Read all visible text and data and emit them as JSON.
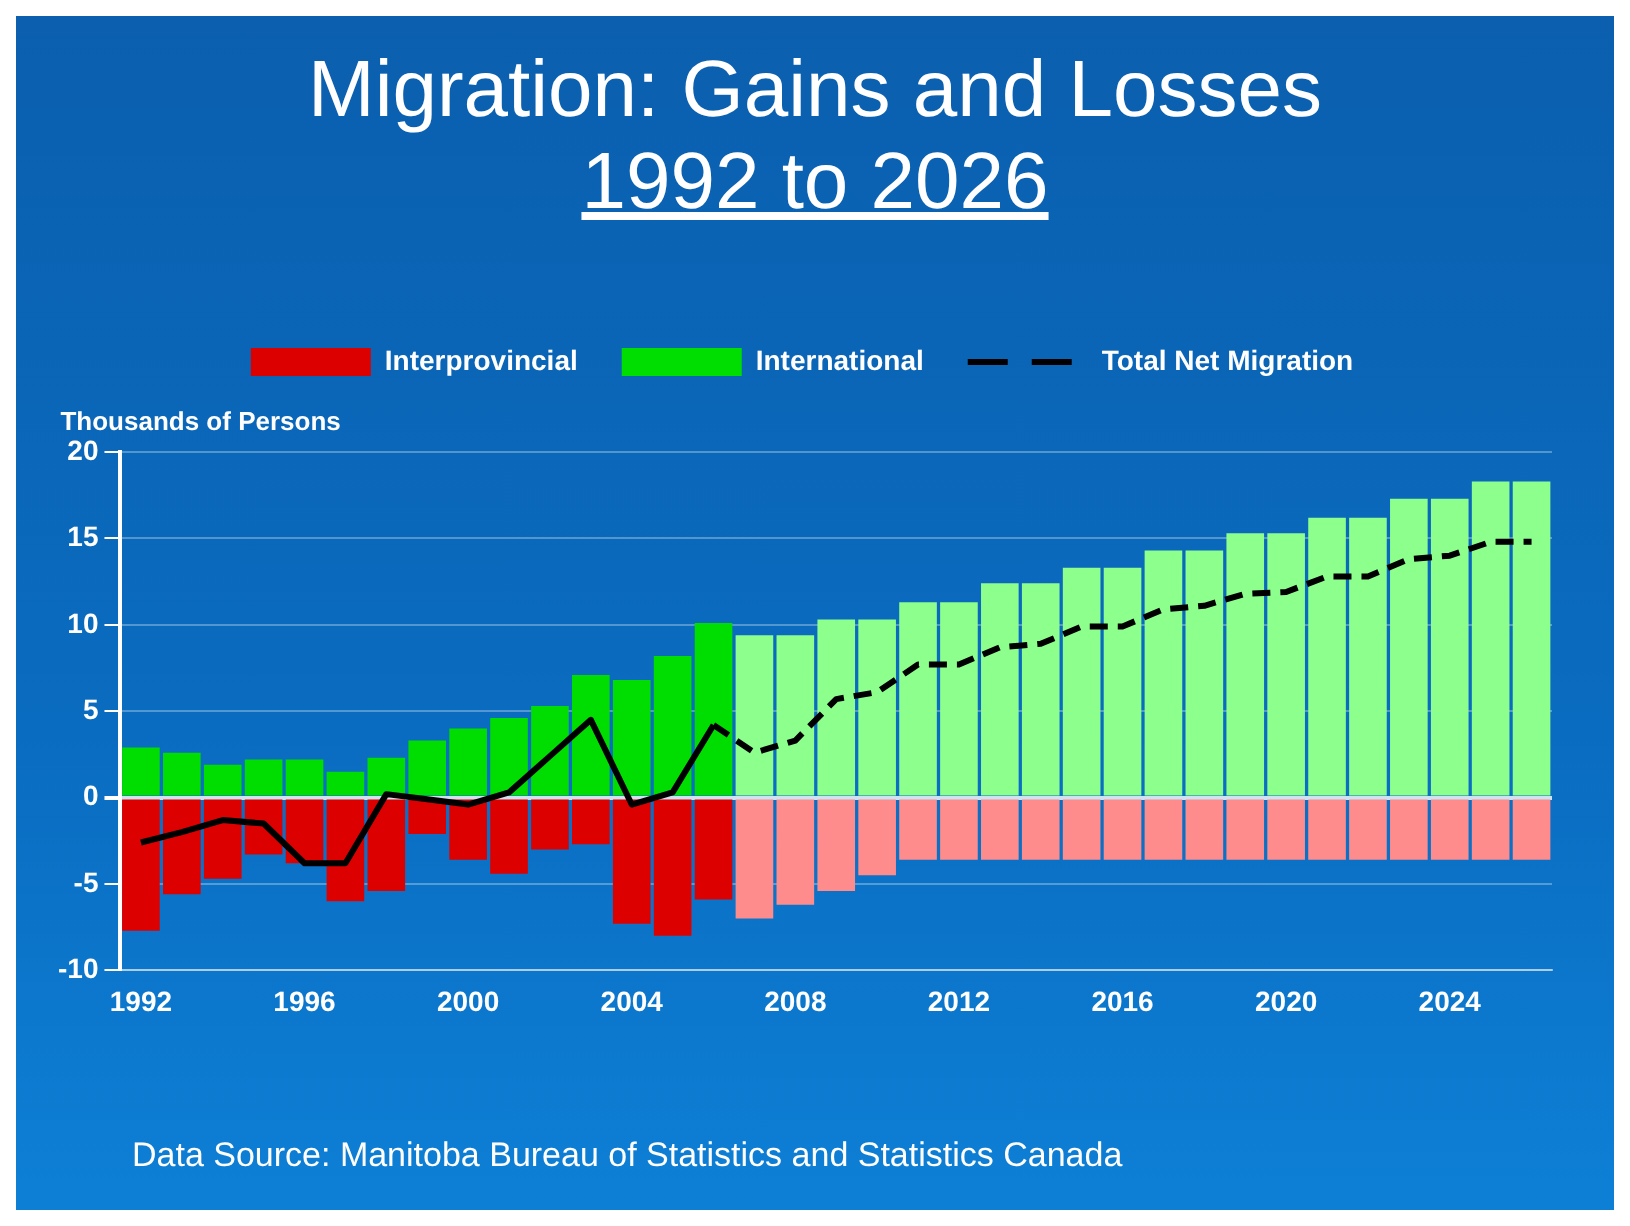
{
  "chart_data": {
    "type": "bar",
    "title": "Migration: Gains and Losses",
    "subtitle": "1992 to 2026",
    "ylabel": "Thousands of Persons",
    "categories": [
      "1992",
      null,
      null,
      null,
      "1996",
      null,
      null,
      null,
      "2000",
      null,
      null,
      null,
      "2004",
      null,
      null,
      null,
      "2008",
      null,
      null,
      null,
      "2012",
      null,
      null,
      null,
      "2016",
      null,
      null,
      null,
      "2020",
      null,
      null,
      null,
      "2024",
      null,
      null
    ],
    "stacked": true,
    "series": [
      {
        "name": "Interprovincial",
        "color": "#dd0000",
        "colors": [
          "#dd0000",
          "#dd0000",
          "#dd0000",
          "#dd0000",
          "#dd0000",
          "#dd0000",
          "#dd0000",
          "#dd0000",
          "#dd0000",
          "#dd0000",
          "#dd0000",
          "#dd0000",
          "#dd0000",
          "#dd0000",
          "#dd0000",
          "#ff8c8c",
          "#ff8c8c",
          "#ff8c8c",
          "#ff8c8c",
          "#ff8c8c",
          "#ff8c8c",
          "#ff8c8c",
          "#ff8c8c",
          "#ff8c8c",
          "#ff8c8c",
          "#ff8c8c",
          "#ff8c8c",
          "#ff8c8c",
          "#ff8c8c",
          "#ff8c8c",
          "#ff8c8c",
          "#ff8c8c",
          "#ff8c8c",
          "#ff8c8c",
          "#ff8c8c"
        ],
        "values": [
          -7.7,
          -5.6,
          -4.7,
          -3.3,
          -3.8,
          -6.0,
          -5.4,
          -2.1,
          -3.6,
          -4.4,
          -3.0,
          -2.7,
          -7.3,
          -8.0,
          -5.9,
          -7.0,
          -6.2,
          -5.4,
          -4.5,
          -3.6,
          -3.6,
          -3.6,
          -3.6,
          -3.6,
          -3.6,
          -3.6,
          -3.6,
          -3.6,
          -3.6,
          -3.6,
          -3.6,
          -3.6,
          -3.6,
          -3.6,
          -3.6
        ]
      },
      {
        "name": "International",
        "color": "#00dd00",
        "colors": [
          "#00dd00",
          "#00dd00",
          "#00dd00",
          "#00dd00",
          "#00dd00",
          "#00dd00",
          "#00dd00",
          "#00dd00",
          "#00dd00",
          "#00dd00",
          "#00dd00",
          "#00dd00",
          "#00dd00",
          "#00dd00",
          "#00dd00",
          "#8cff8c",
          "#8cff8c",
          "#8cff8c",
          "#8cff8c",
          "#8cff8c",
          "#8cff8c",
          "#8cff8c",
          "#8cff8c",
          "#8cff8c",
          "#8cff8c",
          "#8cff8c",
          "#8cff8c",
          "#8cff8c",
          "#8cff8c",
          "#8cff8c",
          "#8cff8c",
          "#8cff8c",
          "#8cff8c",
          "#8cff8c",
          "#8cff8c"
        ],
        "values": [
          2.9,
          2.6,
          1.9,
          2.2,
          2.2,
          1.5,
          2.3,
          3.3,
          4.0,
          4.6,
          5.3,
          7.1,
          6.8,
          8.2,
          10.1,
          9.4,
          9.4,
          10.3,
          10.3,
          11.3,
          11.3,
          12.4,
          12.4,
          13.3,
          13.3,
          14.3,
          14.3,
          15.3,
          15.3,
          16.2,
          16.2,
          17.3,
          17.3,
          18.3,
          18.3
        ]
      },
      {
        "name": "Total Net Migration",
        "type": "line",
        "color": "#000000",
        "line_style": "solid",
        "values": [
          -2.6,
          -2.0,
          -1.3,
          -1.5,
          -3.8,
          -3.8,
          0.2,
          -0.1,
          -0.4,
          0.3,
          2.4,
          4.5,
          -0.4,
          0.3,
          4.2,
          null,
          null,
          null,
          null,
          null,
          null,
          null,
          null,
          null,
          null,
          null,
          null,
          null,
          null,
          null,
          null,
          null,
          null,
          null,
          null
        ]
      },
      {
        "type": "line",
        "color": "#000000",
        "line_style": "dashed",
        "values": [
          null,
          null,
          null,
          null,
          null,
          null,
          null,
          null,
          null,
          null,
          null,
          null,
          null,
          null,
          4.2,
          2.6,
          3.3,
          5.7,
          6.1,
          7.7,
          7.7,
          8.7,
          8.9,
          9.9,
          9.9,
          10.9,
          11.1,
          11.8,
          11.9,
          12.8,
          12.8,
          13.8,
          14.0,
          14.8,
          14.8
        ]
      }
    ],
    "ylim": [
      -10,
      20
    ],
    "yticks": [
      -10,
      -5,
      0,
      5,
      10,
      15,
      20
    ],
    "grid": "y",
    "legend": "top",
    "marker": "none",
    "annotations": [
      "Data Source:  Manitoba Bureau of Statistics and Statistics Canada"
    ]
  }
}
